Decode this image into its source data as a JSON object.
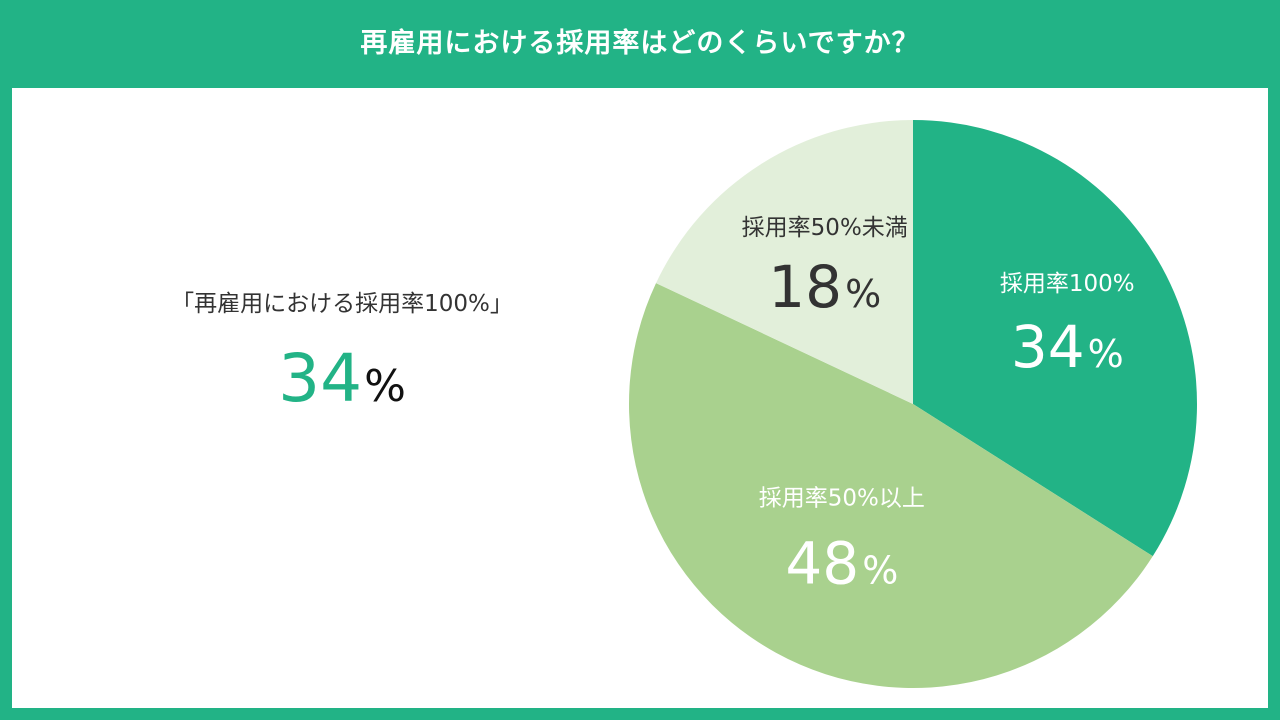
{
  "header": {
    "title": "再雇用における採用率はどのくらいですか？"
  },
  "summary": {
    "label": "「再雇用における採用率100%」",
    "value": "34",
    "unit": "%"
  },
  "chart_data": {
    "type": "pie",
    "title": "再雇用における採用率はどのくらいですか？",
    "slices": [
      {
        "label": "採用率100%",
        "value": 34,
        "display": "34",
        "unit": "%",
        "color": "#22b386",
        "text_color": "#ffffff"
      },
      {
        "label": "採用率50%以上",
        "value": 48,
        "display": "48",
        "unit": "%",
        "color": "#a9d18e",
        "text_color": "#ffffff"
      },
      {
        "label": "採用率50%未満",
        "value": 18,
        "display": "18",
        "unit": "%",
        "color": "#e2efda",
        "text_color": "#333333"
      }
    ],
    "start_angle_deg": 0,
    "direction": "clockwise"
  }
}
